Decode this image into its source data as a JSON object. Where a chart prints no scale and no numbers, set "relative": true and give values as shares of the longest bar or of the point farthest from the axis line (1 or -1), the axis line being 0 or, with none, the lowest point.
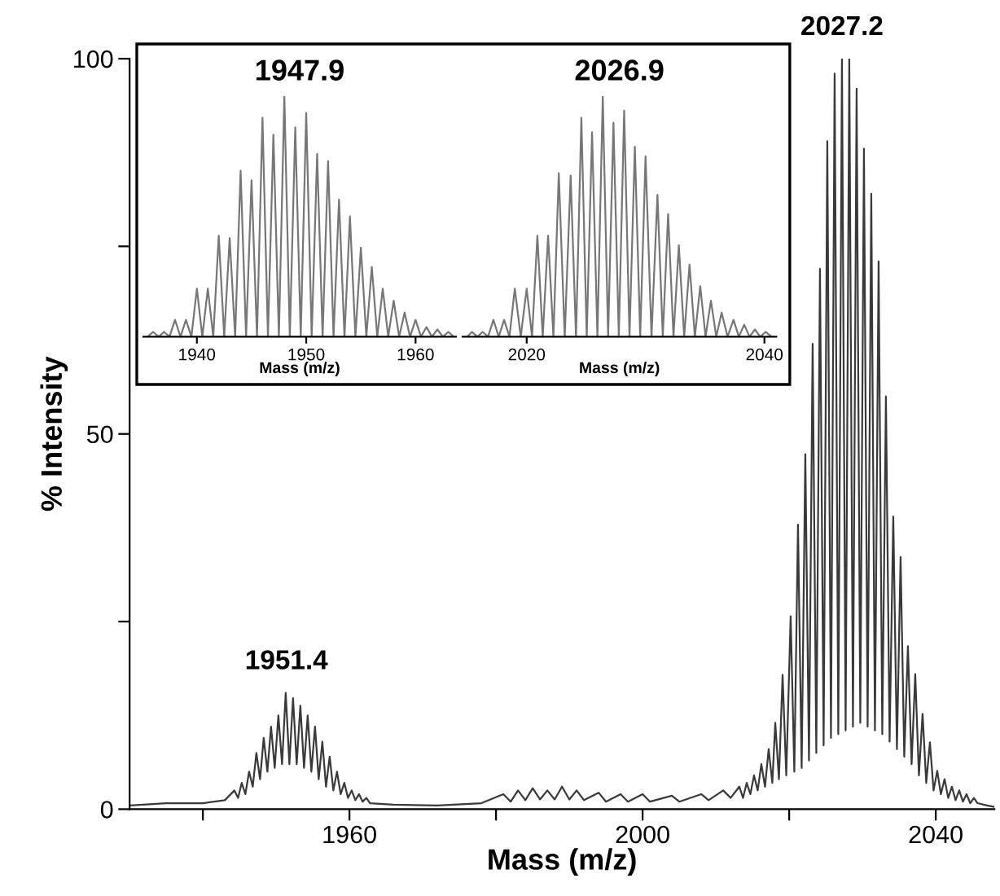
{
  "chart_data": [
    {
      "type": "line",
      "xlabel": "Mass (m/z)",
      "ylabel": "% Intensity",
      "xlim": [
        1930,
        2048
      ],
      "ylim": [
        0,
        100
      ],
      "xticks": [
        {
          "value": 1940,
          "label": null
        },
        1960,
        {
          "value": 1980,
          "label": null
        },
        2000,
        {
          "value": 2020,
          "label": null
        },
        2040
      ],
      "yticks": [
        0,
        {
          "value": 25,
          "label": null
        },
        50,
        {
          "value": 75,
          "label": null
        },
        100
      ],
      "annotations": [
        {
          "text": "1951.4",
          "x": 1951.4,
          "y": 15.5
        },
        {
          "text": "2027.2",
          "x": 2027.2,
          "y": 100
        }
      ],
      "series": [
        {
          "color": "#3a3a3a",
          "x": [
            1930,
            1935,
            1940,
            1943,
            1944.3,
            1944.8,
            1945.3,
            1945.8,
            1946.3,
            1946.8,
            1947.3,
            1947.8,
            1948.3,
            1948.8,
            1949.3,
            1949.8,
            1950.3,
            1950.8,
            1951.3,
            1951.8,
            1952.3,
            1952.8,
            1953.3,
            1953.8,
            1954.3,
            1954.8,
            1955.3,
            1955.8,
            1956.3,
            1956.8,
            1957.3,
            1957.8,
            1958.3,
            1958.8,
            1959.3,
            1959.8,
            1960.3,
            1960.8,
            1961.3,
            1961.8,
            1962.3,
            1962.8,
            1966,
            1972,
            1978,
            1981,
            1982,
            1983,
            1984,
            1985,
            1986,
            1987,
            1988,
            1989,
            1990,
            1991,
            1992,
            1994,
            1995,
            1997,
            1998,
            2000,
            2001,
            2004,
            2005,
            2008,
            2009,
            2011,
            2012,
            2013.2,
            2013.7,
            2014.2,
            2014.7,
            2015.2,
            2015.7,
            2016.2,
            2016.7,
            2017.2,
            2017.7,
            2018.1,
            2018.6,
            2019.1,
            2019.6,
            2020.2,
            2020.7,
            2021.2,
            2021.7,
            2022.2,
            2022.7,
            2023.2,
            2023.7,
            2024.2,
            2024.7,
            2025.2,
            2025.7,
            2026.2,
            2026.7,
            2027.2,
            2027.7,
            2028.2,
            2028.7,
            2029.2,
            2029.7,
            2030.2,
            2030.7,
            2031.2,
            2031.7,
            2032.2,
            2032.7,
            2033.2,
            2033.7,
            2034.2,
            2034.7,
            2035.2,
            2035.7,
            2036.2,
            2036.7,
            2037.2,
            2037.7,
            2038.2,
            2038.7,
            2039.2,
            2039.7,
            2040.2,
            2040.7,
            2041.2,
            2041.7,
            2042.2,
            2042.7,
            2043.2,
            2043.7,
            2044.2,
            2044.7,
            2045.2,
            2045.7,
            2047,
            2048
          ],
          "values": [
            0.5,
            0.8,
            0.8,
            1.2,
            2.5,
            1.5,
            3.5,
            2,
            5,
            3,
            7.5,
            4,
            9.5,
            5,
            11,
            5.5,
            12.5,
            6,
            15.5,
            6,
            14.8,
            6,
            13.8,
            5.5,
            12.5,
            5,
            11,
            4,
            9,
            3,
            7,
            2.5,
            5,
            2,
            3.5,
            1.5,
            2.5,
            1.2,
            2,
            1,
            1.5,
            0.8,
            0.6,
            0.5,
            0.8,
            2,
            1,
            2.5,
            1.2,
            2.8,
            1.3,
            2.5,
            1.3,
            3,
            1.3,
            2.5,
            1.2,
            2.2,
            1,
            2,
            1,
            2,
            1,
            1.8,
            1,
            2,
            1.2,
            2.5,
            1.5,
            3,
            1.5,
            3.5,
            2,
            4.5,
            2.5,
            6,
            3,
            8,
            3.5,
            11.5,
            4,
            17.9,
            4.5,
            25.7,
            5,
            37.9,
            5.5,
            47.3,
            6.5,
            62,
            7.5,
            72,
            8.5,
            89,
            9.5,
            98,
            10,
            100,
            10.5,
            100,
            11,
            96,
            11.5,
            88,
            11,
            82,
            10.5,
            73,
            10,
            55,
            9,
            39,
            8,
            33.6,
            7,
            21.7,
            6,
            18,
            4.5,
            12.7,
            3.5,
            8.9,
            2.5,
            5.1,
            2,
            4,
            1.5,
            3,
            1.2,
            2.5,
            1,
            2,
            0.8,
            1.5,
            0.8,
            0.5,
            0.3
          ]
        }
      ]
    },
    {
      "type": "line",
      "title": "1947.9",
      "xlabel": "Mass (m/z)",
      "relative": true,
      "xlim": [
        1935.1,
        1963.7
      ],
      "xticks": [
        1940,
        1950,
        1960
      ],
      "series": [
        {
          "color": "#777777",
          "x": [
            1935.5,
            1936,
            1936.5,
            1937,
            1937.5,
            1938,
            1938.5,
            1939,
            1939.5,
            1940,
            1940.5,
            1941,
            1941.5,
            1942,
            1942.5,
            1943,
            1943.5,
            1944,
            1944.5,
            1945,
            1945.5,
            1946,
            1946.5,
            1947,
            1947.5,
            1948,
            1948.5,
            1949,
            1949.5,
            1950,
            1950.5,
            1951,
            1951.5,
            1952,
            1952.5,
            1953,
            1953.5,
            1954,
            1954.5,
            1955,
            1955.5,
            1956,
            1956.5,
            1957,
            1957.5,
            1958,
            1958.5,
            1959,
            1959.5,
            1960,
            1960.5,
            1961,
            1961.5,
            1962,
            1962.5,
            1963,
            1963.5
          ],
          "values": [
            0,
            0.02,
            0,
            0.02,
            0,
            0.07,
            0,
            0.07,
            0,
            0.2,
            0,
            0.2,
            0,
            0.42,
            0,
            0.41,
            0,
            0.69,
            0,
            0.65,
            0,
            0.91,
            0,
            0.84,
            0,
            1,
            0,
            0.87,
            0,
            0.93,
            0,
            0.76,
            0,
            0.73,
            0,
            0.57,
            0,
            0.5,
            0,
            0.37,
            0,
            0.29,
            0,
            0.2,
            0,
            0.15,
            0,
            0.1,
            0,
            0.07,
            0,
            0.04,
            0,
            0.03,
            0,
            0.02,
            0
          ]
        }
      ]
    },
    {
      "type": "line",
      "title": "2026.9",
      "xlabel": "Mass (m/z)",
      "relative": true,
      "xlim": [
        2014.6,
        2041.0
      ],
      "xticks": [
        2020,
        2040
      ],
      "series": [
        {
          "color": "#777777",
          "x": [
            2015,
            2015.4,
            2015.85,
            2016.3,
            2016.75,
            2017.2,
            2017.65,
            2018.1,
            2018.55,
            2019,
            2019.5,
            2020,
            2020.45,
            2020.9,
            2021.35,
            2021.8,
            2022.25,
            2022.7,
            2023.2,
            2023.7,
            2024.15,
            2024.6,
            2025.05,
            2025.5,
            2025.95,
            2026.4,
            2026.85,
            2027.3,
            2027.75,
            2028.2,
            2028.65,
            2029.1,
            2029.55,
            2030,
            2030.5,
            2031,
            2031.45,
            2031.9,
            2032.35,
            2032.8,
            2033.25,
            2033.7,
            2034.15,
            2034.6,
            2035.05,
            2035.5,
            2035.95,
            2036.4,
            2036.9,
            2037.4,
            2037.85,
            2038.3,
            2038.75,
            2039.2,
            2039.65,
            2040.1,
            2040.6
          ],
          "values": [
            0,
            0.02,
            0,
            0.02,
            0,
            0.07,
            0,
            0.07,
            0,
            0.2,
            0,
            0.2,
            0,
            0.42,
            0,
            0.42,
            0,
            0.68,
            0,
            0.67,
            0,
            0.91,
            0,
            0.85,
            0,
            1,
            0,
            0.89,
            0,
            0.94,
            0,
            0.79,
            0,
            0.75,
            0,
            0.59,
            0,
            0.51,
            0,
            0.38,
            0,
            0.3,
            0,
            0.21,
            0,
            0.15,
            0,
            0.1,
            0,
            0.07,
            0,
            0.05,
            0,
            0.03,
            0,
            0.02,
            0
          ]
        }
      ]
    }
  ]
}
